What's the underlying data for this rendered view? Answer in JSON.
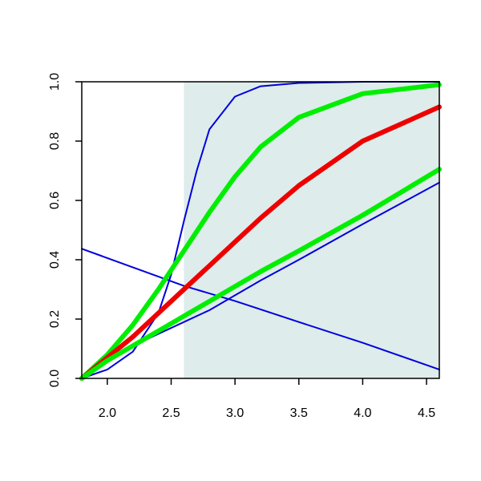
{
  "chart_data": {
    "type": "line",
    "title": "",
    "xlabel": "",
    "ylabel": "",
    "xlim": [
      1.8,
      4.6
    ],
    "ylim": [
      0.0,
      1.0
    ],
    "x_ticks": [
      2.0,
      2.5,
      3.0,
      3.5,
      4.0,
      4.5
    ],
    "y_ticks": [
      0.0,
      0.2,
      0.4,
      0.6,
      0.8,
      1.0
    ],
    "x_tick_labels": [
      "2.0",
      "2.5",
      "3.0",
      "3.5",
      "4.0",
      "4.5"
    ],
    "y_tick_labels": [
      "0.0",
      "0.2",
      "0.4",
      "0.6",
      "0.8",
      "1.0"
    ],
    "shaded_region": {
      "x_from": 2.6,
      "x_to": 4.6,
      "color": "#deeceb"
    },
    "grid": false,
    "legend": "none",
    "series": [
      {
        "color": "#0000dd",
        "width": "thin",
        "x": [
          1.8,
          2.6,
          3.0,
          3.5,
          4.0,
          4.6
        ],
        "y": [
          0.437,
          0.312,
          0.261,
          0.19,
          0.12,
          0.03
        ]
      },
      {
        "color": "#0000dd",
        "width": "thin",
        "x": [
          1.8,
          2.0,
          2.2,
          2.4,
          2.5,
          2.6,
          2.7,
          2.8,
          3.0,
          3.2,
          3.5,
          4.0,
          4.6
        ],
        "y": [
          0.0,
          0.03,
          0.09,
          0.22,
          0.35,
          0.53,
          0.7,
          0.84,
          0.95,
          0.985,
          0.996,
          1.0,
          1.0
        ]
      },
      {
        "color": "#0000dd",
        "width": "thin",
        "x": [
          1.8,
          2.0,
          2.2,
          2.4,
          2.6,
          2.8,
          3.0,
          3.2,
          3.5,
          4.0,
          4.6
        ],
        "y": [
          0.0,
          0.06,
          0.11,
          0.15,
          0.19,
          0.23,
          0.28,
          0.33,
          0.4,
          0.52,
          0.66
        ]
      },
      {
        "color": "#00ee00",
        "width": "thick",
        "x": [
          1.8,
          2.0,
          2.2,
          2.4,
          2.6,
          2.8,
          3.0,
          3.2,
          3.5,
          4.0,
          4.6
        ],
        "y": [
          0.0,
          0.08,
          0.18,
          0.3,
          0.43,
          0.56,
          0.68,
          0.78,
          0.88,
          0.96,
          0.99
        ]
      },
      {
        "color": "#ee0000",
        "width": "thick",
        "x": [
          1.8,
          2.0,
          2.2,
          2.4,
          2.6,
          2.8,
          3.0,
          3.2,
          3.5,
          4.0,
          4.6
        ],
        "y": [
          0.0,
          0.07,
          0.14,
          0.22,
          0.3,
          0.38,
          0.46,
          0.54,
          0.65,
          0.8,
          0.915
        ]
      },
      {
        "color": "#00ee00",
        "width": "thick",
        "x": [
          1.8,
          2.0,
          2.2,
          2.4,
          2.6,
          2.8,
          3.0,
          3.2,
          3.5,
          4.0,
          4.6
        ],
        "y": [
          0.0,
          0.06,
          0.11,
          0.16,
          0.21,
          0.26,
          0.31,
          0.36,
          0.43,
          0.55,
          0.705
        ]
      }
    ]
  }
}
